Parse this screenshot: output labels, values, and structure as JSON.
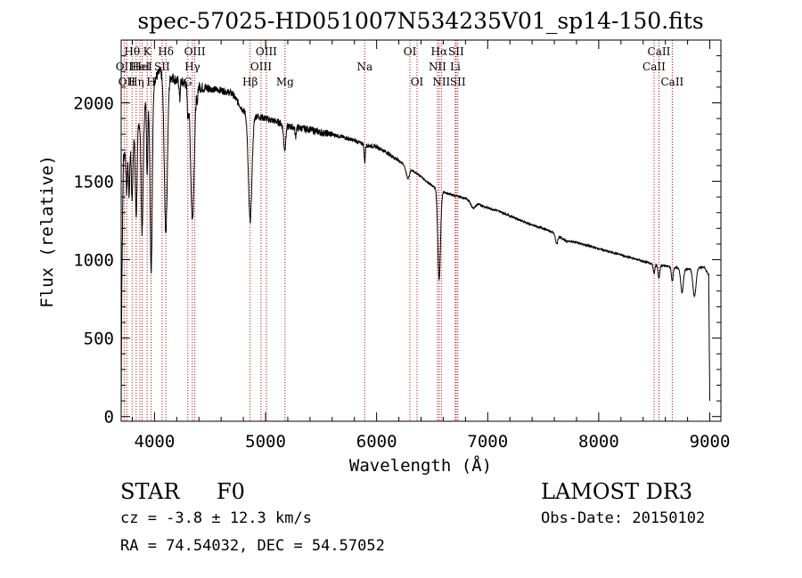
{
  "colors": {
    "spectrum": "#000000",
    "line_marker": "#cc0000",
    "axes": "#000000",
    "background": "#ffffff"
  },
  "info": {
    "object_class": "STAR",
    "subclass": "F0",
    "survey": "LAMOST DR3",
    "cz_text": "cz = -3.8 ± 12.3 km/s",
    "obs_date_text": "Obs-Date: 20150102",
    "coords_text": "RA =  74.54032, DEC =  54.57052"
  },
  "chart_data": {
    "type": "line",
    "title": "spec-57025-HD051007N534235V01_sp14-150.fits",
    "xlabel": "Wavelength (Å)",
    "ylabel": "Flux (relative)",
    "xlim": [
      3700,
      9100
    ],
    "ylim": [
      -30,
      2400
    ],
    "x_ticks": [
      4000,
      5000,
      6000,
      7000,
      8000,
      9000
    ],
    "y_ticks": [
      0,
      500,
      1000,
      1500,
      2000
    ],
    "x_tick_labels": [
      "4000",
      "5000",
      "6000",
      "7000",
      "8000",
      "9000"
    ],
    "y_tick_labels": [
      "0",
      "500",
      "1000",
      "1500",
      "2000"
    ],
    "continuum": [
      [
        3700,
        0
      ],
      [
        3705,
        800
      ],
      [
        3720,
        1650
      ],
      [
        3760,
        1750
      ],
      [
        3800,
        1780
      ],
      [
        3850,
        1850
      ],
      [
        3900,
        1950
      ],
      [
        3950,
        2050
      ],
      [
        4000,
        2150
      ],
      [
        4050,
        2200
      ],
      [
        4100,
        2180
      ],
      [
        4150,
        2170
      ],
      [
        4200,
        2140
      ],
      [
        4300,
        2120
      ],
      [
        4400,
        2100
      ],
      [
        4500,
        2090
      ],
      [
        4600,
        2080
      ],
      [
        4700,
        2060
      ],
      [
        4800,
        1950
      ],
      [
        4900,
        1920
      ],
      [
        5000,
        1900
      ],
      [
        5100,
        1880
      ],
      [
        5200,
        1850
      ],
      [
        5300,
        1840
      ],
      [
        5400,
        1830
      ],
      [
        5500,
        1810
      ],
      [
        5600,
        1800
      ],
      [
        5700,
        1780
      ],
      [
        5800,
        1760
      ],
      [
        5900,
        1730
      ],
      [
        6000,
        1720
      ],
      [
        6100,
        1680
      ],
      [
        6200,
        1630
      ],
      [
        6300,
        1580
      ],
      [
        6400,
        1530
      ],
      [
        6500,
        1470
      ],
      [
        6600,
        1430
      ],
      [
        6700,
        1410
      ],
      [
        6800,
        1390
      ],
      [
        6900,
        1360
      ],
      [
        7000,
        1330
      ],
      [
        7100,
        1310
      ],
      [
        7200,
        1280
      ],
      [
        7300,
        1250
      ],
      [
        7400,
        1220
      ],
      [
        7500,
        1200
      ],
      [
        7600,
        1170
      ],
      [
        7700,
        1120
      ],
      [
        7800,
        1110
      ],
      [
        7900,
        1090
      ],
      [
        8000,
        1070
      ],
      [
        8100,
        1050
      ],
      [
        8200,
        1030
      ],
      [
        8300,
        1010
      ],
      [
        8400,
        990
      ],
      [
        8500,
        970
      ],
      [
        8600,
        960
      ],
      [
        8700,
        950
      ],
      [
        8800,
        940
      ],
      [
        8900,
        950
      ],
      [
        8950,
        950
      ],
      [
        8990,
        900
      ],
      [
        9000,
        100
      ]
    ],
    "absorption_features": [
      {
        "center": 3750,
        "depth": 300,
        "width": 6
      },
      {
        "center": 3771,
        "depth": 350,
        "width": 6
      },
      {
        "center": 3798,
        "depth": 400,
        "width": 7
      },
      {
        "center": 3835,
        "depth": 550,
        "width": 8
      },
      {
        "center": 3889,
        "depth": 750,
        "width": 9
      },
      {
        "center": 3934,
        "depth": 500,
        "width": 5
      },
      {
        "center": 3970,
        "depth": 1150,
        "width": 10
      },
      {
        "center": 4102,
        "depth": 1000,
        "width": 14
      },
      {
        "center": 4227,
        "depth": 120,
        "width": 4
      },
      {
        "center": 4300,
        "depth": 180,
        "width": 6
      },
      {
        "center": 4341,
        "depth": 850,
        "width": 16
      },
      {
        "center": 4384,
        "depth": 100,
        "width": 4
      },
      {
        "center": 4861,
        "depth": 680,
        "width": 16
      },
      {
        "center": 5172,
        "depth": 150,
        "width": 10
      },
      {
        "center": 5270,
        "depth": 60,
        "width": 5
      },
      {
        "center": 5893,
        "depth": 110,
        "width": 5
      },
      {
        "center": 6280,
        "depth": 70,
        "width": 15
      },
      {
        "center": 6563,
        "depth": 570,
        "width": 12
      },
      {
        "center": 6870,
        "depth": 40,
        "width": 20
      },
      {
        "center": 7620,
        "depth": 60,
        "width": 10
      },
      {
        "center": 8498,
        "depth": 60,
        "width": 7
      },
      {
        "center": 8542,
        "depth": 80,
        "width": 8
      },
      {
        "center": 8662,
        "depth": 90,
        "width": 8
      },
      {
        "center": 8750,
        "depth": 150,
        "width": 12
      },
      {
        "center": 8862,
        "depth": 180,
        "width": 14
      }
    ],
    "line_markers": [
      {
        "wavelength": 3727,
        "label": "OII",
        "row": 1
      },
      {
        "wavelength": 3750,
        "label": "OII",
        "row": 2
      },
      {
        "wavelength": 3798,
        "label": "Hθ",
        "row": 0
      },
      {
        "wavelength": 3835,
        "label": "Hη",
        "row": 2
      },
      {
        "wavelength": 3869,
        "label": "HeI",
        "row": 1
      },
      {
        "wavelength": 3889,
        "label": "HeI",
        "row": 1
      },
      {
        "wavelength": 3934,
        "label": "K",
        "row": 0
      },
      {
        "wavelength": 3970,
        "label": "H",
        "row": 2
      },
      {
        "wavelength": 4068,
        "label": "SII",
        "row": 1
      },
      {
        "wavelength": 4102,
        "label": "Hδ",
        "row": 0
      },
      {
        "wavelength": 4300,
        "label": "G",
        "row": 2
      },
      {
        "wavelength": 4341,
        "label": "Hγ",
        "row": 1
      },
      {
        "wavelength": 4363,
        "label": "OIII",
        "row": 0
      },
      {
        "wavelength": 4861,
        "label": "Hβ",
        "row": 2
      },
      {
        "wavelength": 4959,
        "label": "OIII",
        "row": 1
      },
      {
        "wavelength": 5007,
        "label": "OIII",
        "row": 0
      },
      {
        "wavelength": 5175,
        "label": "Mg",
        "row": 2
      },
      {
        "wavelength": 5893,
        "label": "Na",
        "row": 1
      },
      {
        "wavelength": 6300,
        "label": "OI",
        "row": 0
      },
      {
        "wavelength": 6364,
        "label": "OI",
        "row": 2
      },
      {
        "wavelength": 6548,
        "label": "NII",
        "row": 1
      },
      {
        "wavelength": 6563,
        "label": "Hα",
        "row": 0
      },
      {
        "wavelength": 6583,
        "label": "NII",
        "row": 2
      },
      {
        "wavelength": 6708,
        "label": "Li",
        "row": 1
      },
      {
        "wavelength": 6716,
        "label": "SII",
        "row": 0
      },
      {
        "wavelength": 6731,
        "label": "SII",
        "row": 2
      },
      {
        "wavelength": 8498,
        "label": "CaII",
        "row": 1
      },
      {
        "wavelength": 8542,
        "label": "CaII",
        "row": 0
      },
      {
        "wavelength": 8662,
        "label": "CaII",
        "row": 2
      }
    ]
  }
}
